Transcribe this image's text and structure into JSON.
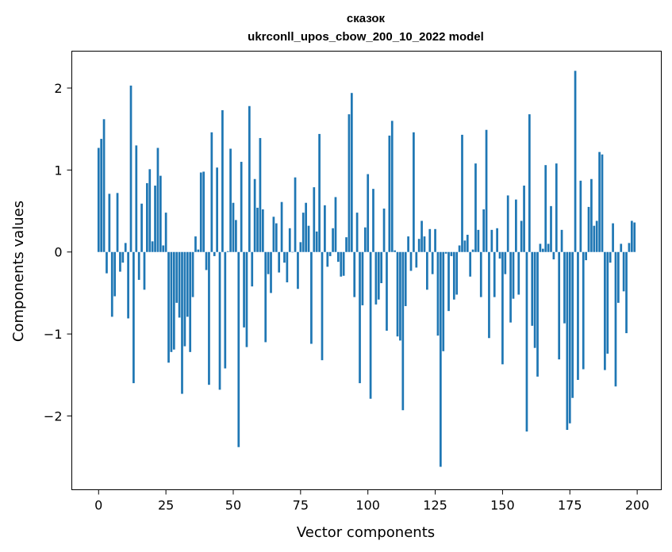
{
  "chart_data": {
    "type": "bar",
    "title": "сказок",
    "subtitle": "ukrconll_upos_cbow_200_10_2022 model",
    "xlabel": "Vector components",
    "ylabel": "Components values",
    "xlim": [
      -9.95,
      208.95
    ],
    "ylim": [
      -2.9,
      2.45
    ],
    "xticks": [
      0,
      25,
      50,
      75,
      100,
      125,
      150,
      175,
      200
    ],
    "yticks": [
      -2,
      -1,
      0,
      1,
      2
    ],
    "ytick_labels": [
      "−2",
      "−1",
      "0",
      "1",
      "2"
    ],
    "bar_color": "#1f77b4",
    "grid": false,
    "x": [
      0,
      1,
      2,
      3,
      4,
      5,
      6,
      7,
      8,
      9,
      10,
      11,
      12,
      13,
      14,
      15,
      16,
      17,
      18,
      19,
      20,
      21,
      22,
      23,
      24,
      25,
      26,
      27,
      28,
      29,
      30,
      31,
      32,
      33,
      34,
      35,
      36,
      37,
      38,
      39,
      40,
      41,
      42,
      43,
      44,
      45,
      46,
      47,
      48,
      49,
      50,
      51,
      52,
      53,
      54,
      55,
      56,
      57,
      58,
      59,
      60,
      61,
      62,
      63,
      64,
      65,
      66,
      67,
      68,
      69,
      70,
      71,
      72,
      73,
      74,
      75,
      76,
      77,
      78,
      79,
      80,
      81,
      82,
      83,
      84,
      85,
      86,
      87,
      88,
      89,
      90,
      91,
      92,
      93,
      94,
      95,
      96,
      97,
      98,
      99,
      100,
      101,
      102,
      103,
      104,
      105,
      106,
      107,
      108,
      109,
      110,
      111,
      112,
      113,
      114,
      115,
      116,
      117,
      118,
      119,
      120,
      121,
      122,
      123,
      124,
      125,
      126,
      127,
      128,
      129,
      130,
      131,
      132,
      133,
      134,
      135,
      136,
      137,
      138,
      139,
      140,
      141,
      142,
      143,
      144,
      145,
      146,
      147,
      148,
      149,
      150,
      151,
      152,
      153,
      154,
      155,
      156,
      157,
      158,
      159,
      160,
      161,
      162,
      163,
      164,
      165,
      166,
      167,
      168,
      169,
      170,
      171,
      172,
      173,
      174,
      175,
      176,
      177,
      178,
      179,
      180,
      181,
      182,
      183,
      184,
      185,
      186,
      187,
      188,
      189,
      190,
      191,
      192,
      193,
      194,
      195,
      196,
      197,
      198,
      199
    ],
    "values": [
      1.27,
      1.38,
      1.62,
      -0.26,
      0.71,
      -0.79,
      -0.54,
      0.72,
      -0.24,
      -0.13,
      0.11,
      -0.81,
      2.03,
      -1.6,
      1.3,
      -0.34,
      0.59,
      -0.46,
      0.84,
      1.01,
      0.13,
      0.81,
      1.27,
      0.93,
      0.08,
      0.48,
      -1.35,
      -1.22,
      -1.19,
      -0.62,
      -0.8,
      -1.73,
      -1.15,
      -0.79,
      -1.22,
      -0.55,
      0.19,
      0.03,
      0.97,
      0.98,
      -0.22,
      -1.62,
      1.46,
      -0.05,
      1.03,
      -1.68,
      1.73,
      -1.42,
      0.01,
      1.26,
      0.6,
      0.39,
      -2.38,
      1.1,
      -0.92,
      -1.16,
      1.78,
      -0.42,
      0.89,
      0.54,
      1.39,
      0.52,
      -1.1,
      -0.27,
      -0.5,
      0.43,
      0.35,
      -0.25,
      0.61,
      -0.13,
      -0.37,
      0.29,
      0.0,
      0.91,
      -0.45,
      0.12,
      0.48,
      0.6,
      0.32,
      -1.12,
      0.79,
      0.25,
      1.44,
      -1.32,
      0.57,
      -0.18,
      -0.05,
      0.29,
      0.67,
      -0.12,
      -0.3,
      -0.29,
      0.18,
      1.68,
      1.94,
      -0.55,
      0.48,
      -1.6,
      -0.65,
      0.3,
      0.95,
      -1.79,
      0.77,
      -0.64,
      -0.58,
      -0.38,
      0.53,
      -0.96,
      1.42,
      1.6,
      0.02,
      -1.03,
      -1.08,
      -1.93,
      -0.66,
      0.19,
      -0.23,
      1.46,
      -0.19,
      0.16,
      0.38,
      0.19,
      -0.46,
      0.28,
      -0.27,
      0.28,
      -1.02,
      -2.62,
      -1.21,
      -0.02,
      -0.72,
      -0.05,
      -0.58,
      -0.52,
      0.08,
      1.43,
      0.14,
      0.21,
      -0.3,
      0.03,
      1.08,
      0.27,
      -0.55,
      0.52,
      1.49,
      -1.05,
      0.27,
      -0.55,
      0.29,
      -0.08,
      -1.37,
      -0.27,
      0.69,
      -0.86,
      -0.57,
      0.64,
      -0.52,
      0.38,
      0.81,
      -2.19,
      1.68,
      -0.9,
      -1.17,
      -1.52,
      0.1,
      0.04,
      1.06,
      0.1,
      0.56,
      -0.09,
      1.08,
      -1.31,
      0.27,
      -0.87,
      -2.17,
      -2.09,
      -1.78,
      2.21,
      -1.56,
      0.87,
      -1.43,
      -0.1,
      0.55,
      0.89,
      0.32,
      0.38,
      1.22,
      1.19,
      -1.44,
      -1.24,
      -0.13,
      0.35,
      -1.64,
      -0.62,
      0.1,
      -0.48,
      -0.99,
      0.11,
      0.38,
      0.36
    ]
  }
}
